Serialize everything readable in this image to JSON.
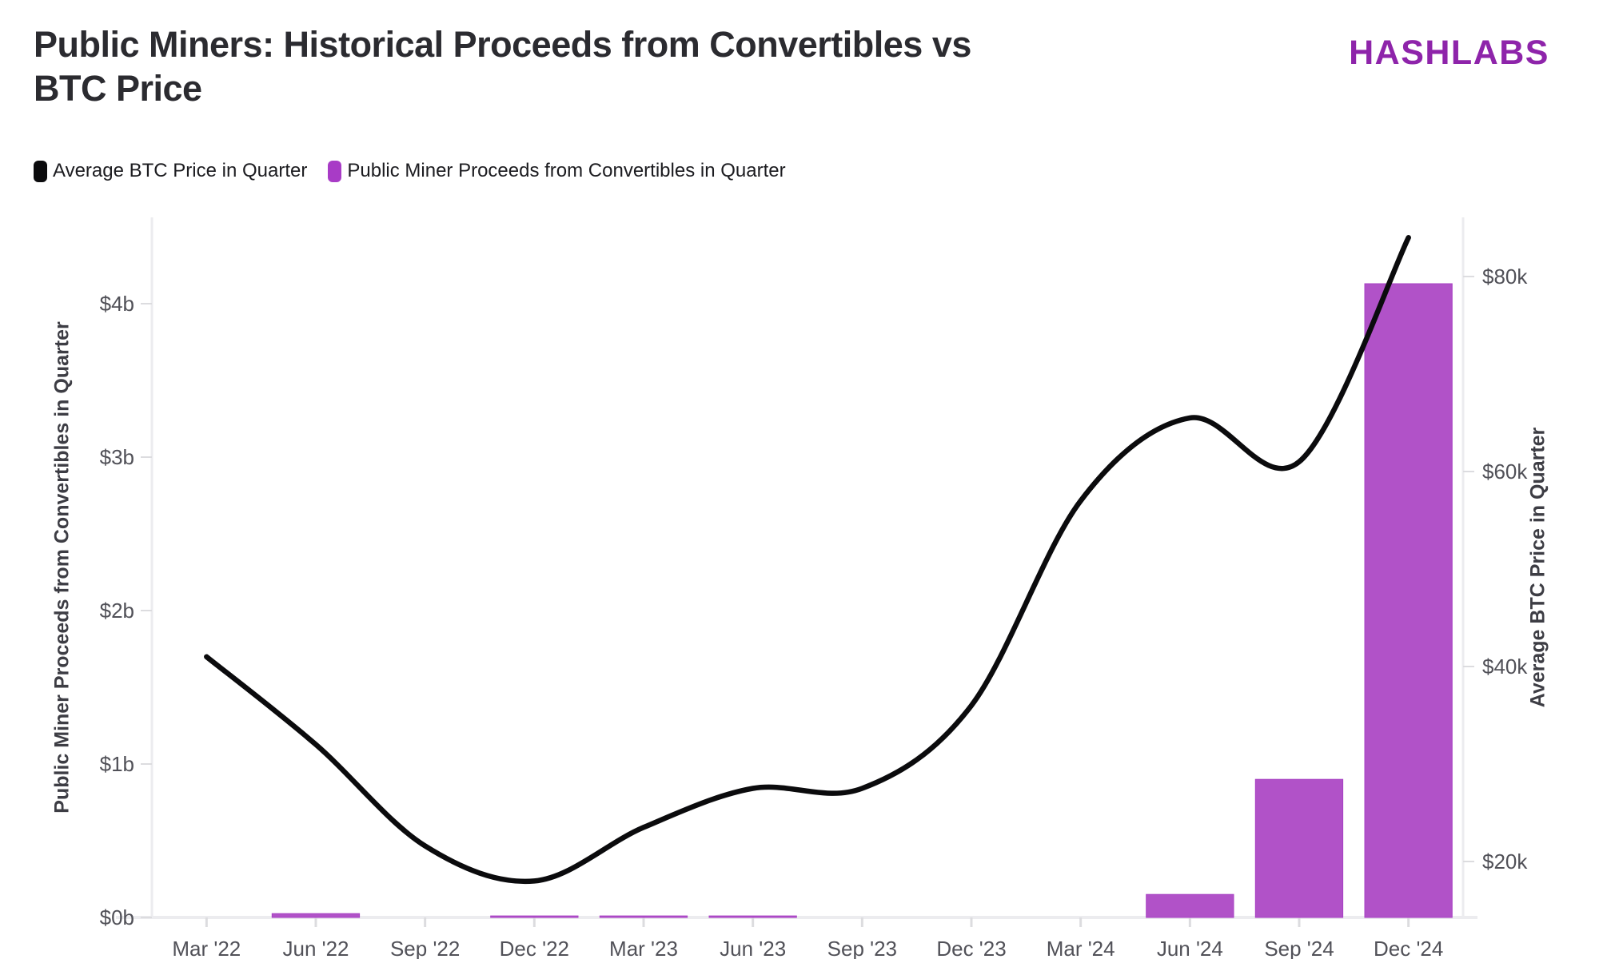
{
  "header": {
    "title_line1": "Public Miners: Historical Proceeds from Convertibles vs",
    "title_line2": "BTC Price",
    "logo": "HASHLABS"
  },
  "legend": {
    "items": [
      {
        "label": "Average BTC Price in Quarter",
        "color": "#0b0b0d"
      },
      {
        "label": "Public Miner Proceeds from Convertibles in Quarter",
        "color": "#a83bc6"
      }
    ]
  },
  "colors": {
    "background": "#ffffff",
    "title": "#2b2b30",
    "logo_purple": "#8e24aa",
    "bar_purple": "#b152c8",
    "bar_edge": "#a841c4",
    "line_black": "#0b0b0d",
    "axis_line": "#ececef",
    "tick_stub": "#dcdcdf",
    "tick_text": "#515158"
  },
  "chart_data": {
    "type": "bar+line dual-axis",
    "title": "Public Miners: Historical Proceeds from Convertibles vs BTC Price",
    "categories": [
      "Mar '22",
      "Jun '22",
      "Sep '22",
      "Dec '22",
      "Mar '23",
      "Jun '23",
      "Sep '23",
      "Dec '23",
      "Mar '24",
      "Jun '24",
      "Sep '24",
      "Dec '24"
    ],
    "series": [
      {
        "name": "Public Miner Proceeds from Convertibles in Quarter",
        "type": "bar",
        "axis": "left",
        "unit": "USD billions",
        "color": "#b152c8",
        "values": [
          0,
          0.025,
          0,
          0.01,
          0.01,
          0.01,
          0,
          0,
          0,
          0.15,
          0.9,
          4.13
        ]
      },
      {
        "name": "Average BTC Price in Quarter",
        "type": "line",
        "axis": "right",
        "unit": "USD thousands",
        "color": "#0b0b0d",
        "values": [
          41,
          32,
          21.6,
          18,
          23.5,
          27.5,
          27.5,
          36,
          57,
          65.5,
          61,
          84
        ]
      }
    ],
    "left_axis": {
      "label": "Public Miner Proceeds from Convertibles in Quarter",
      "tick_values": [
        0,
        1,
        2,
        3,
        4
      ],
      "tick_labels": [
        "$0b",
        "$1b",
        "$2b",
        "$3b",
        "$4b"
      ],
      "range": [
        0,
        4.5625
      ]
    },
    "right_axis": {
      "label": "Average BTC Price in Quarter",
      "tick_values": [
        20,
        40,
        60,
        80
      ],
      "tick_labels": [
        "$20k",
        "$40k",
        "$60k",
        "$80k"
      ],
      "range": [
        14.26,
        86.07
      ]
    },
    "grid": "none",
    "legend_position": "top-left"
  }
}
